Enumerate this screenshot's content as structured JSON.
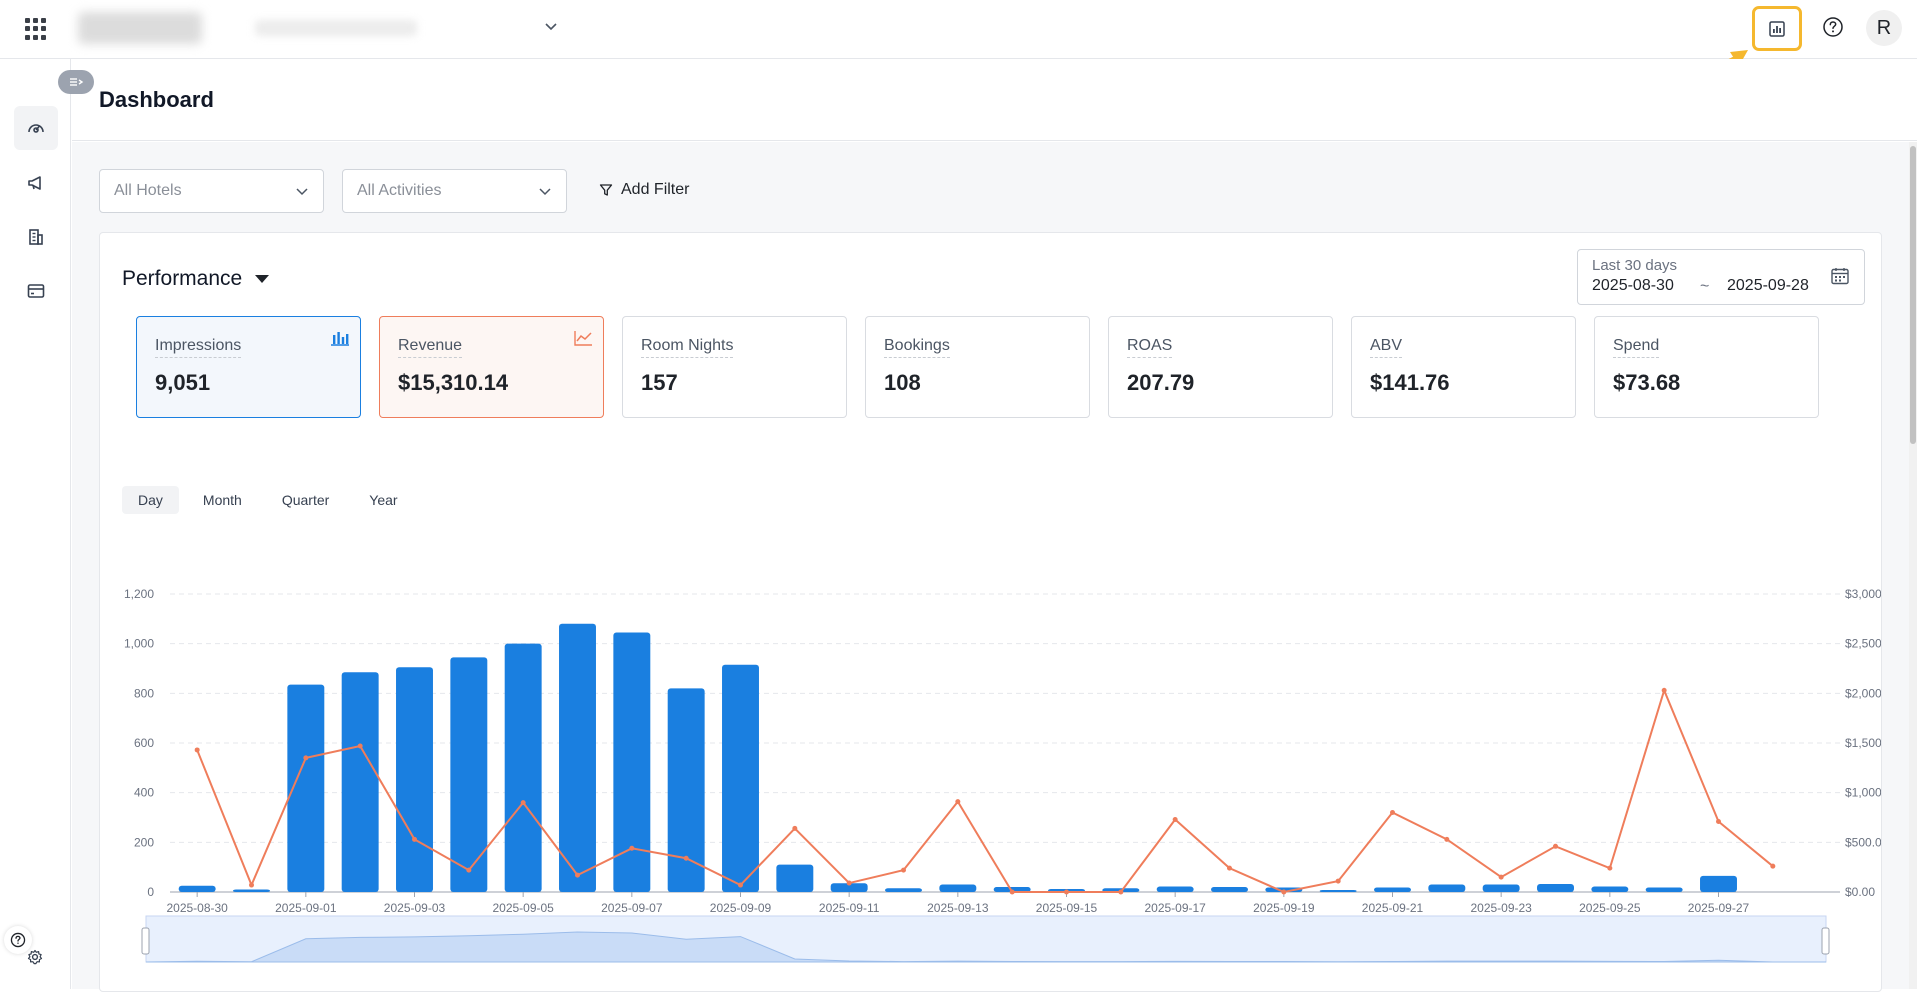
{
  "header": {
    "page_title": "Dashboard",
    "avatar_initial": "R"
  },
  "filters": {
    "hotels": "All Hotels",
    "activities": "All Activities",
    "add_filter": "Add Filter"
  },
  "performance": {
    "title": "Performance",
    "date_range": {
      "label": "Last 30 days",
      "start": "2025-08-30",
      "separator": "~",
      "end": "2025-09-28"
    },
    "kpis": [
      {
        "label": "Impressions",
        "value": "9,051",
        "state": "selected-blue",
        "icon": "bar-chart-icon"
      },
      {
        "label": "Revenue",
        "value": "$15,310.14",
        "state": "selected-orange",
        "icon": "line-chart-icon"
      },
      {
        "label": "Room Nights",
        "value": "157",
        "state": "default"
      },
      {
        "label": "Bookings",
        "value": "108",
        "state": "default"
      },
      {
        "label": "ROAS",
        "value": "207.79",
        "state": "default"
      },
      {
        "label": "ABV",
        "value": "$141.76",
        "state": "default"
      },
      {
        "label": "Spend",
        "value": "$73.68",
        "state": "default"
      }
    ],
    "periods": [
      "Day",
      "Month",
      "Quarter",
      "Year"
    ],
    "active_period": "Day"
  },
  "colors": {
    "bar": "#1a7fe0",
    "line": "#ef7d5b",
    "highlight": "#f5b82e"
  },
  "chart_data": {
    "type": "bar",
    "categories": [
      "2025-08-30",
      "2025-08-31",
      "2025-09-01",
      "2025-09-02",
      "2025-09-03",
      "2025-09-04",
      "2025-09-05",
      "2025-09-06",
      "2025-09-07",
      "2025-09-08",
      "2025-09-09",
      "2025-09-10",
      "2025-09-11",
      "2025-09-12",
      "2025-09-13",
      "2025-09-14",
      "2025-09-15",
      "2025-09-16",
      "2025-09-17",
      "2025-09-18",
      "2025-09-19",
      "2025-09-20",
      "2025-09-21",
      "2025-09-22",
      "2025-09-23",
      "2025-09-24",
      "2025-09-25",
      "2025-09-26",
      "2025-09-27",
      "2025-09-28"
    ],
    "x_tick_labels": [
      "2025-08-30",
      "2025-09-01",
      "2025-09-03",
      "2025-09-05",
      "2025-09-07",
      "2025-09-09",
      "2025-09-11",
      "2025-09-13",
      "2025-09-15",
      "2025-09-17",
      "2025-09-19",
      "2025-09-21",
      "2025-09-23",
      "2025-09-25",
      "2025-09-27"
    ],
    "series": [
      {
        "type": "bar",
        "axis": "left",
        "values": [
          25,
          10,
          835,
          885,
          905,
          945,
          1000,
          1080,
          1045,
          820,
          915,
          110,
          35,
          15,
          30,
          20,
          12,
          15,
          22,
          20,
          18,
          8,
          18,
          30,
          30,
          32,
          22,
          18,
          65,
          0
        ]
      },
      {
        "type": "line",
        "axis": "right",
        "values": [
          1430,
          70,
          1350,
          1470,
          530,
          220,
          900,
          170,
          440,
          340,
          70,
          640,
          90,
          220,
          910,
          0,
          0,
          0,
          730,
          240,
          0,
          110,
          800,
          530,
          150,
          460,
          240,
          2030,
          710,
          260
        ]
      }
    ],
    "y_left": {
      "min": 0,
      "max": 1200,
      "ticks": [
        "0",
        "200",
        "400",
        "600",
        "800",
        "1,000",
        "1,200"
      ]
    },
    "y_right": {
      "min": 0,
      "max": 3000,
      "ticks": [
        "$0.00",
        "$500.00",
        "$1,000.00",
        "$1,500.00",
        "$2,000.00",
        "$2,500.00",
        "$3,000.00"
      ]
    },
    "grid": true,
    "legend": "none"
  }
}
